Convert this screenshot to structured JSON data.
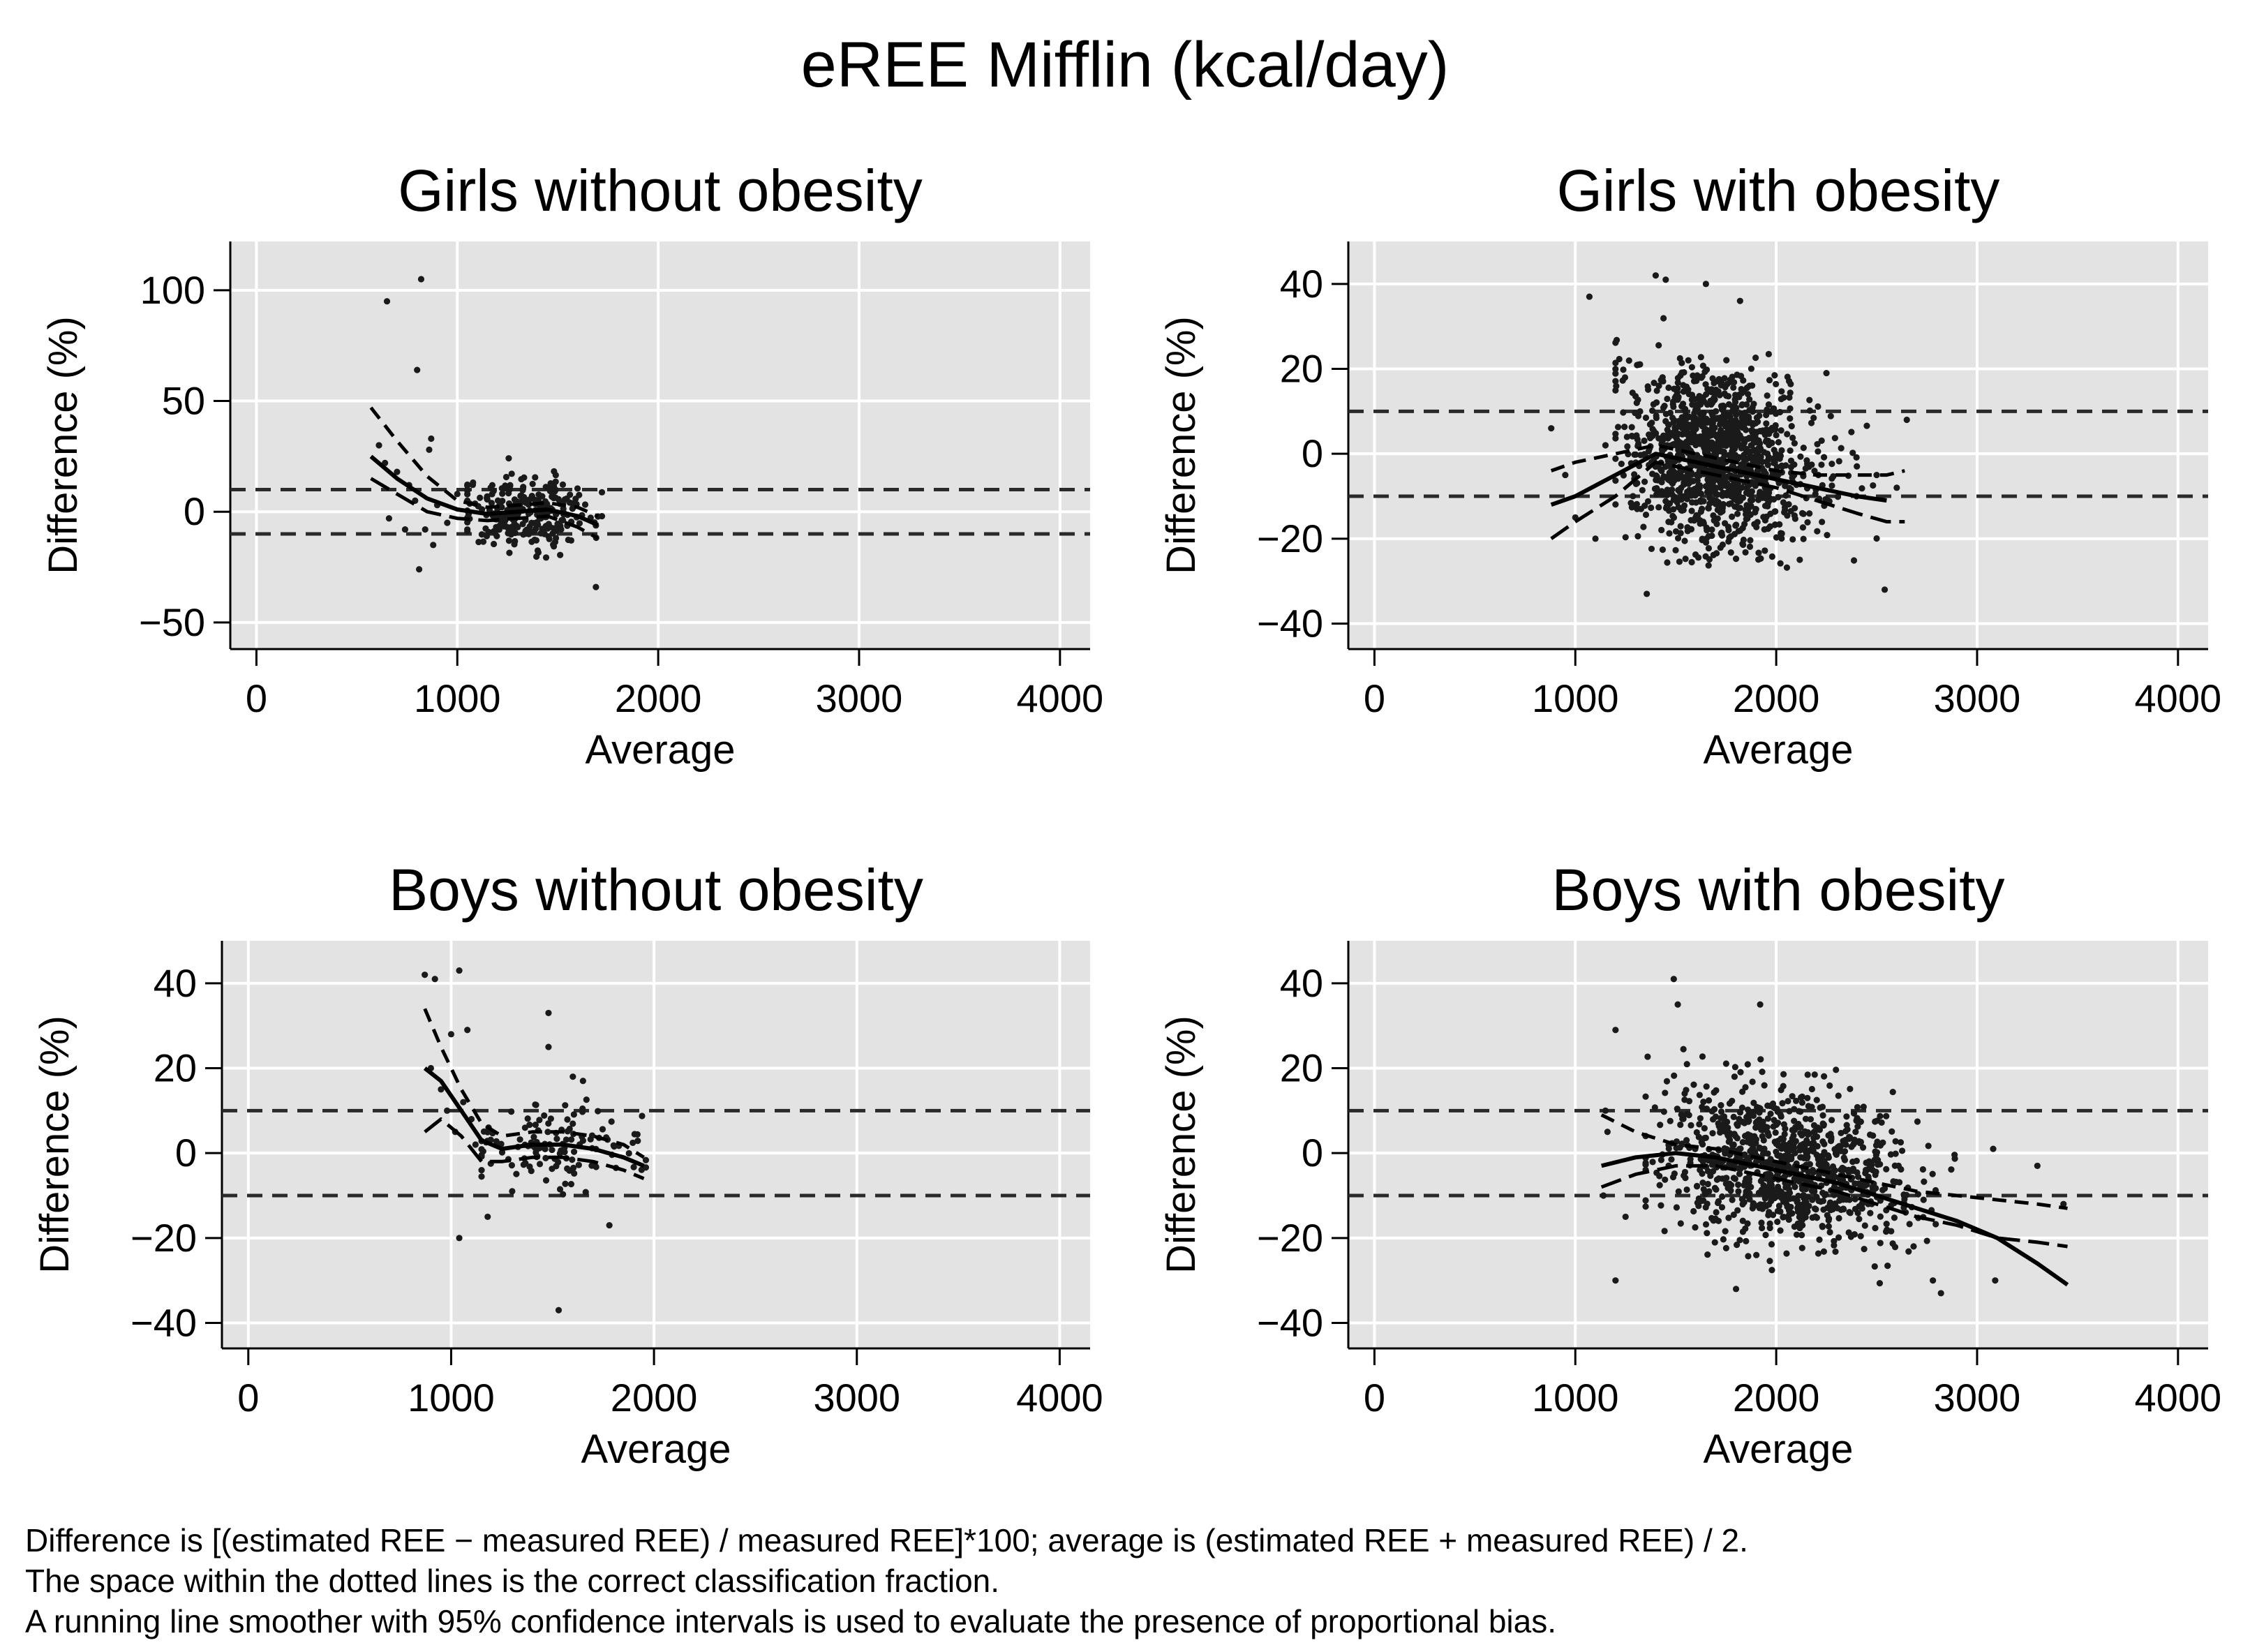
{
  "figure": {
    "title": "eREE Mifflin (kcal/day)",
    "notes": [
      "Difference is [(estimated REE − measured REE) / measured REE]*100; average is (estimated REE + measured REE) / 2.",
      "The space within the dotted lines is the correct classification fraction.",
      "A running line smoother with 95% confidence intervals is used to evaluate the presence of proportional bias."
    ]
  },
  "colors": {
    "plot_background": "#e3e3e3",
    "gridline": "#ffffff",
    "marker": "#1a1a1a",
    "reference_line": "#2a2a2a"
  },
  "chart_data": [
    {
      "type": "scatter",
      "title": "Girls without obesity",
      "xlabel": "Average",
      "ylabel": "Difference (%)",
      "xlim": [
        -130,
        4150
      ],
      "ylim": [
        -62,
        122
      ],
      "xticks": [
        0,
        1000,
        2000,
        3000,
        4000
      ],
      "yticks": [
        100,
        50,
        0,
        -50
      ],
      "grid": true,
      "reference_lines": [
        10,
        -10
      ],
      "cluster": {
        "x_mean": 1350,
        "x_sd": 170,
        "x_range": [
          1050,
          1720
        ],
        "y_mean": 0,
        "y_sd": 8,
        "y_range": [
          -30,
          30
        ],
        "count": 280,
        "x_slope": 0
      },
      "points": [
        [
          650,
          95
        ],
        [
          820,
          105
        ],
        [
          800,
          64
        ],
        [
          870,
          33
        ],
        [
          860,
          28
        ],
        [
          610,
          30
        ],
        [
          640,
          22
        ],
        [
          700,
          18
        ],
        [
          760,
          12
        ],
        [
          790,
          5
        ],
        [
          840,
          -8
        ],
        [
          880,
          -15
        ],
        [
          810,
          -26
        ],
        [
          660,
          -3
        ],
        [
          740,
          -8
        ],
        [
          900,
          3
        ],
        [
          950,
          -5
        ],
        [
          1000,
          8
        ],
        [
          1690,
          -34
        ]
      ],
      "smoother": {
        "x": [
          570,
          700,
          850,
          1000,
          1150,
          1300,
          1450,
          1600,
          1700
        ],
        "y": [
          25,
          15,
          6,
          1,
          -1,
          0,
          1,
          -2,
          -6
        ]
      },
      "ci_upper": {
        "x": [
          570,
          700,
          850,
          1000,
          1150,
          1300,
          1450,
          1600,
          1700
        ],
        "y": [
          47,
          32,
          16,
          5,
          2,
          3,
          4,
          2,
          -2
        ]
      },
      "ci_lower": {
        "x": [
          570,
          700,
          850,
          1000,
          1150,
          1300,
          1450,
          1600,
          1700
        ],
        "y": [
          15,
          8,
          0,
          -3,
          -4,
          -3,
          -2,
          -7,
          -12
        ]
      }
    },
    {
      "type": "scatter",
      "title": "Girls with obesity",
      "xlabel": "Average",
      "ylabel": "Difference (%)",
      "xlim": [
        -130,
        4150
      ],
      "ylim": [
        -46,
        50
      ],
      "xticks": [
        0,
        1000,
        2000,
        3000,
        4000
      ],
      "yticks": [
        40,
        20,
        0,
        -20,
        -40
      ],
      "grid": true,
      "reference_lines": [
        10,
        -10
      ],
      "cluster": {
        "x_mean": 1720,
        "x_sd": 230,
        "x_range": [
          1200,
          2500
        ],
        "y_mean": -1,
        "y_sd": 10,
        "y_range": [
          -33,
          42
        ],
        "count": 1300,
        "x_slope": -0.008
      },
      "points": [
        [
          880,
          6
        ],
        [
          1070,
          37
        ],
        [
          1400,
          42
        ],
        [
          1450,
          41
        ],
        [
          1650,
          40
        ],
        [
          1820,
          36
        ],
        [
          2250,
          19
        ],
        [
          2540,
          -32
        ],
        [
          2650,
          8
        ],
        [
          950,
          -5
        ],
        [
          1000,
          -15
        ],
        [
          1100,
          -20
        ],
        [
          1150,
          2
        ],
        [
          2400,
          -10
        ],
        [
          2500,
          -5
        ],
        [
          2600,
          -8
        ]
      ],
      "smoother": {
        "x": [
          880,
          1000,
          1200,
          1400,
          1600,
          1800,
          2000,
          2200,
          2400,
          2550
        ],
        "y": [
          -12,
          -10,
          -5,
          0,
          -2,
          -4,
          -6,
          -8,
          -10,
          -11
        ]
      },
      "ci_upper": {
        "x": [
          880,
          1000,
          1200,
          1400,
          1600,
          1800,
          2000,
          2200,
          2400,
          2550,
          2640
        ],
        "y": [
          -4,
          -2,
          0,
          2,
          0,
          -2,
          -4,
          -5,
          -5,
          -5,
          -4
        ]
      },
      "ci_lower": {
        "x": [
          880,
          1000,
          1200,
          1400,
          1600,
          1800,
          2000,
          2200,
          2400,
          2550,
          2640
        ],
        "y": [
          -20,
          -16,
          -10,
          -2,
          -4,
          -6,
          -8,
          -11,
          -14,
          -16,
          -16
        ]
      }
    },
    {
      "type": "scatter",
      "title": "Boys without obesity",
      "xlabel": "Average",
      "ylabel": "Difference (%)",
      "xlim": [
        -130,
        4150
      ],
      "ylim": [
        -46,
        50
      ],
      "xticks": [
        0,
        1000,
        2000,
        3000,
        4000
      ],
      "yticks": [
        40,
        20,
        0,
        -20,
        -40
      ],
      "grid": true,
      "reference_lines": [
        10,
        -10
      ],
      "cluster": {
        "x_mean": 1500,
        "x_sd": 210,
        "x_range": [
          1150,
          1960
        ],
        "y_mean": 1,
        "y_sd": 5,
        "y_range": [
          -15,
          18
        ],
        "count": 130,
        "x_slope": 0
      },
      "points": [
        [
          870,
          42
        ],
        [
          920,
          41
        ],
        [
          1040,
          43
        ],
        [
          1000,
          28
        ],
        [
          1080,
          29
        ],
        [
          1480,
          33
        ],
        [
          1480,
          25
        ],
        [
          1600,
          18
        ],
        [
          1650,
          17
        ],
        [
          1530,
          -37
        ],
        [
          1040,
          -20
        ],
        [
          1180,
          -15
        ],
        [
          1780,
          -17
        ],
        [
          900,
          20
        ],
        [
          950,
          15
        ],
        [
          980,
          10
        ],
        [
          1020,
          5
        ],
        [
          1060,
          12
        ],
        [
          1100,
          8
        ],
        [
          1120,
          2
        ]
      ],
      "smoother": {
        "x": [
          870,
          950,
          1050,
          1150,
          1250,
          1400,
          1550,
          1700,
          1850,
          1950
        ],
        "y": [
          20,
          17,
          10,
          3,
          1,
          2,
          2,
          1,
          -1,
          -3
        ]
      },
      "ci_upper": {
        "x": [
          870,
          950,
          1050,
          1150,
          1250,
          1400,
          1550,
          1700,
          1850,
          1950
        ],
        "y": [
          34,
          25,
          15,
          7,
          4,
          5,
          5,
          4,
          2,
          -1
        ]
      },
      "ci_lower": {
        "x": [
          870,
          950,
          1050,
          1150,
          1250,
          1400,
          1550,
          1700,
          1850,
          1950
        ],
        "y": [
          5,
          8,
          4,
          -2,
          -2,
          -1,
          -1,
          -2,
          -4,
          -6
        ]
      }
    },
    {
      "type": "scatter",
      "title": "Boys with obesity",
      "xlabel": "Average",
      "ylabel": "Difference (%)",
      "xlim": [
        -130,
        4150
      ],
      "ylim": [
        -46,
        50
      ],
      "xticks": [
        0,
        1000,
        2000,
        3000,
        4000
      ],
      "yticks": [
        40,
        20,
        0,
        -20,
        -40
      ],
      "grid": true,
      "reference_lines": [
        10,
        -10
      ],
      "cluster": {
        "x_mean": 2050,
        "x_sd": 300,
        "x_range": [
          1350,
          2900
        ],
        "y_mean": -3,
        "y_sd": 9,
        "y_range": [
          -33,
          35
        ],
        "count": 1000,
        "x_slope": -0.008
      },
      "points": [
        [
          1200,
          29
        ],
        [
          1490,
          41
        ],
        [
          1510,
          35
        ],
        [
          1920,
          35
        ],
        [
          1200,
          -30
        ],
        [
          1800,
          -32
        ],
        [
          2780,
          -30
        ],
        [
          2820,
          -33
        ],
        [
          3080,
          1
        ],
        [
          3300,
          -3
        ],
        [
          3090,
          -30
        ],
        [
          3430,
          -12
        ],
        [
          1150,
          10
        ],
        [
          1160,
          5
        ],
        [
          1140,
          -10
        ],
        [
          1250,
          -15
        ]
      ],
      "smoother": {
        "x": [
          1130,
          1300,
          1500,
          1700,
          1900,
          2100,
          2300,
          2500,
          2700,
          2900,
          3100,
          3300,
          3450
        ],
        "y": [
          -3,
          -1,
          0,
          -1,
          -3,
          -5,
          -7,
          -10,
          -13,
          -16,
          -20,
          -26,
          -31
        ]
      },
      "ci_upper": {
        "x": [
          1130,
          1300,
          1500,
          1700,
          1900,
          2100,
          2300,
          2500,
          2700,
          2900,
          3100,
          3300,
          3450
        ],
        "y": [
          9,
          5,
          2,
          1,
          -1,
          -3,
          -5,
          -7,
          -9,
          -10,
          -11,
          -12,
          -13
        ]
      },
      "ci_lower": {
        "x": [
          1130,
          1300,
          1500,
          1700,
          1900,
          2100,
          2300,
          2500,
          2700,
          2900,
          3100,
          3300,
          3450
        ],
        "y": [
          -8,
          -5,
          -3,
          -3,
          -5,
          -7,
          -9,
          -12,
          -15,
          -17,
          -20,
          -21,
          -22
        ]
      }
    }
  ]
}
